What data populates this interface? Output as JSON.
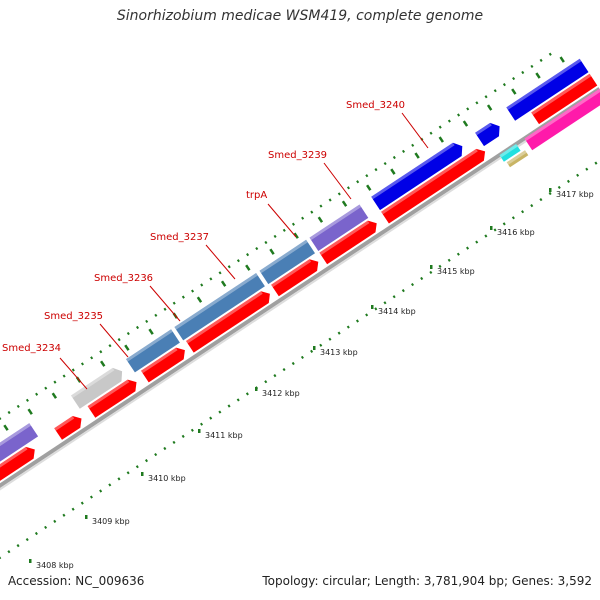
{
  "title": "Sinorhizobium medicae WSM419, complete genome",
  "footer": {
    "accession": "Accession: NC_009636",
    "summary": "Topology: circular; Length: 3,781,904 bp; Genes: 3,592"
  },
  "colors": {
    "cds_forward": "#ff0000",
    "blue": "#0000e6",
    "steel": "#4a7fb5",
    "purple": "#7a64cc",
    "gray": "#c8c8c8",
    "magenta": "#ff1aaa",
    "cyan": "#22e0e0",
    "olive": "#c8b464",
    "label": "#cc0000",
    "tick": "#1f7a1f",
    "backbone": "#999999"
  },
  "gene_labels": [
    "Smed_3234",
    "Smed_3235",
    "Smed_3236",
    "Smed_3237",
    "trpA",
    "Smed_3239",
    "Smed_3240"
  ],
  "kbp_ticks": [
    "3408 kbp",
    "3409 kbp",
    "3410 kbp",
    "3411 kbp",
    "3412 kbp",
    "3413 kbp",
    "3414 kbp",
    "3415 kbp",
    "3416 kbp",
    "3417 kbp"
  ]
}
